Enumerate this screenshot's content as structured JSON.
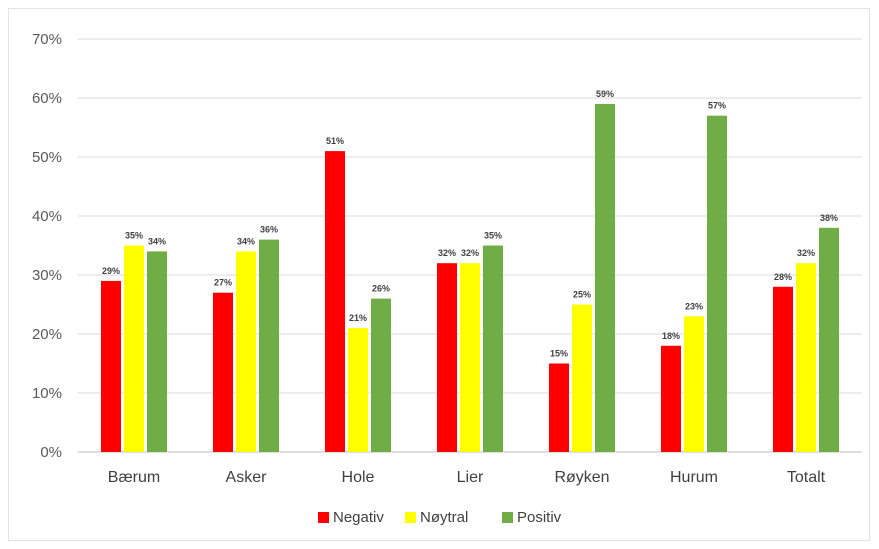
{
  "chart_data": {
    "type": "bar",
    "title": "",
    "xlabel": "",
    "ylabel": "",
    "ylim": [
      0,
      70
    ],
    "y_unit": "%",
    "y_ticks": [
      "0%",
      "10%",
      "20%",
      "30%",
      "40%",
      "50%",
      "60%",
      "70%"
    ],
    "grid": true,
    "legend_position": "bottom",
    "categories": [
      "Bærum",
      "Asker",
      "Hole",
      "Lier",
      "Røyken",
      "Hurum",
      "Totalt"
    ],
    "series": [
      {
        "name": "Negativ",
        "color": "#ff0000",
        "values": [
          29,
          27,
          51,
          32,
          15,
          18,
          28
        ],
        "labels": [
          "29%",
          "27%",
          "51%",
          "32%",
          "15%",
          "18%",
          "28%"
        ]
      },
      {
        "name": "Nøytral",
        "color": "#ffff00",
        "values": [
          35,
          34,
          21,
          32,
          25,
          23,
          32
        ],
        "labels": [
          "35%",
          "34%",
          "21%",
          "32%",
          "25%",
          "23%",
          "32%"
        ]
      },
      {
        "name": "Positiv",
        "color": "#70ad47",
        "values": [
          34,
          36,
          26,
          35,
          59,
          57,
          38
        ],
        "labels": [
          "34%",
          "36%",
          "26%",
          "35%",
          "59%",
          "57%",
          "38%"
        ]
      }
    ]
  }
}
